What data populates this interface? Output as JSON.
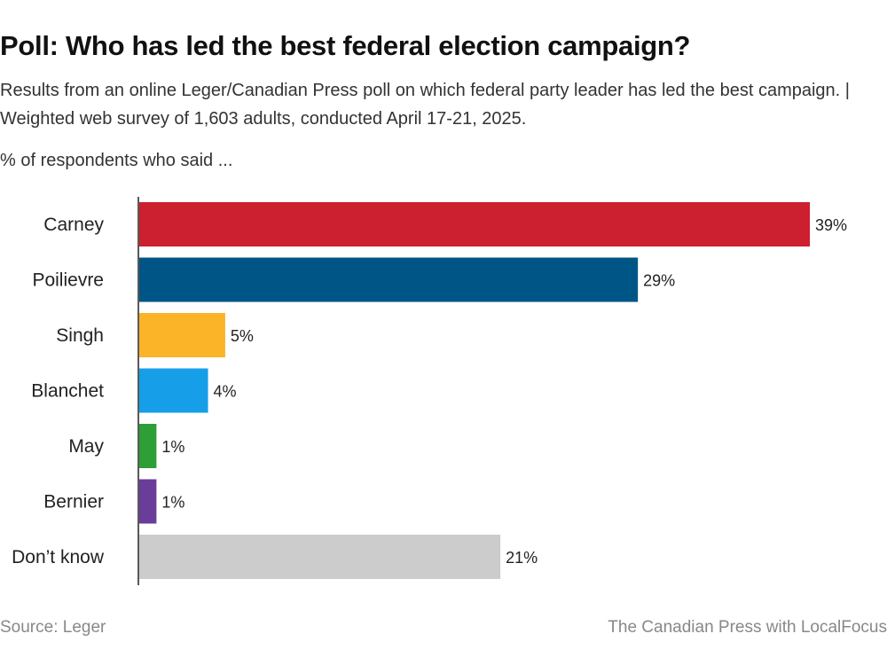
{
  "header": {
    "title": "Poll: Who has led the best federal election campaign?",
    "subtitle": "Results from an online Leger/Canadian Press poll on which federal party leader has led the best campaign. | Weighted web survey of 1,603 adults, conducted April 17-21, 2025.",
    "unit_label": "% of respondents who said ..."
  },
  "footer": {
    "source": "Source:  Leger",
    "credit": "The Canadian Press with LocalFocus"
  },
  "chart_data": {
    "type": "bar",
    "orientation": "horizontal",
    "title": "Poll: Who has led the best federal election campaign?",
    "xlabel": "",
    "ylabel": "% of respondents who said ...",
    "categories": [
      "Carney",
      "Poilievre",
      "Singh",
      "Blanchet",
      "May",
      "Bernier",
      "Don’t know"
    ],
    "values": [
      39,
      29,
      5,
      4,
      1,
      1,
      21
    ],
    "value_labels": [
      "39%",
      "29%",
      "5%",
      "4%",
      "1%",
      "1%",
      "21%"
    ],
    "colors": [
      "#cc1f2f",
      "#005587",
      "#fbb428",
      "#169fe8",
      "#2e9e36",
      "#6a3d9a",
      "#cccccc"
    ],
    "xlim": [
      0,
      39
    ],
    "grid": false,
    "legend": "none"
  }
}
